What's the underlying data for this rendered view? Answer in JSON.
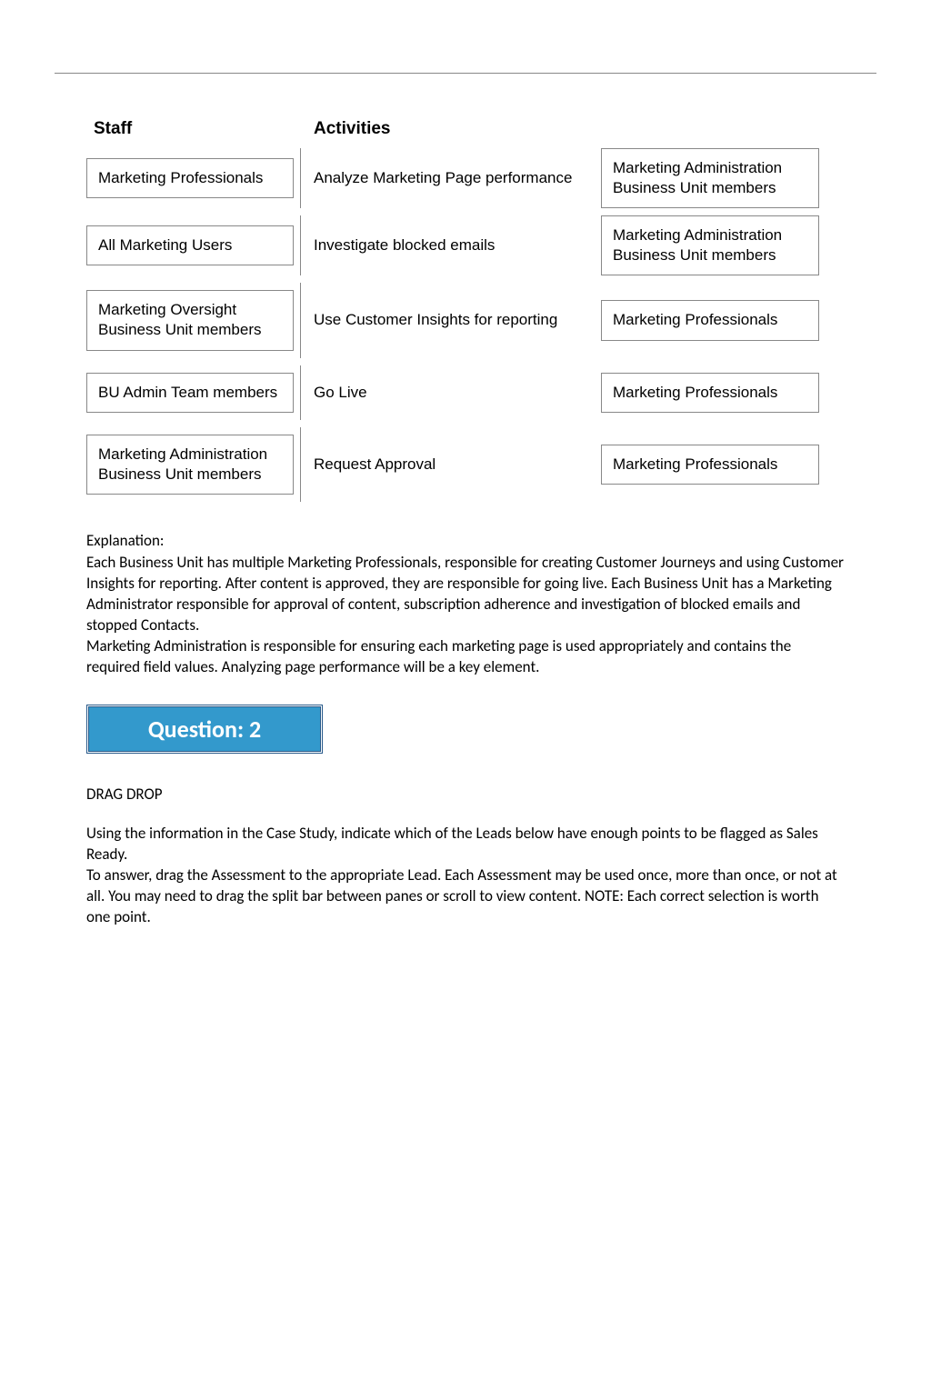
{
  "headers": {
    "staff": "Staff",
    "activities": "Activities"
  },
  "rows": [
    {
      "staff": "Marketing Professionals",
      "activity": "Analyze Marketing Page performance",
      "result": "Marketing Administration Business Unit members"
    },
    {
      "staff": "All Marketing Users",
      "activity": "Investigate blocked emails",
      "result": "Marketing Administration Business Unit members"
    },
    {
      "staff": "Marketing Oversight Business Unit members",
      "activity": "Use Customer Insights for reporting",
      "result": "Marketing Professionals"
    },
    {
      "staff": "BU Admin Team members",
      "activity": "Go Live",
      "result": "Marketing Professionals"
    },
    {
      "staff": "Marketing Administration Business Unit members",
      "activity": "Request Approval",
      "result": "Marketing Professionals"
    }
  ],
  "explanation": {
    "title": "Explanation:",
    "p1": "Each Business Unit has multiple Marketing Professionals, responsible for creating Customer Journeys and using Customer Insights for reporting. After content is approved, they are responsible for going live. Each Business Unit has a Marketing Administrator responsible for approval of content, subscription adherence and investigation of blocked emails and stopped Contacts.",
    "p2": "Marketing Administration is responsible for ensuring each marketing page is used appropriately and contains the required field values. Analyzing page performance will be a key element."
  },
  "question_badge": "Question: 2",
  "drag_drop": {
    "title": "DRAG DROP",
    "p1": "Using the information in the Case Study, indicate which of the Leads below have enough points to be flagged as Sales Ready.",
    "p2": "To answer, drag the Assessment to the appropriate Lead. Each Assessment may be used once, more than once, or not at all. You may need to drag the split bar between panes or scroll to view content. NOTE: Each correct selection is worth one point."
  },
  "colors": {
    "badge_bg": "#3399cc",
    "badge_border": "#2a5a8a",
    "badge_text": "#ffffff",
    "border": "#888888",
    "text": "#000000",
    "background": "#ffffff"
  }
}
